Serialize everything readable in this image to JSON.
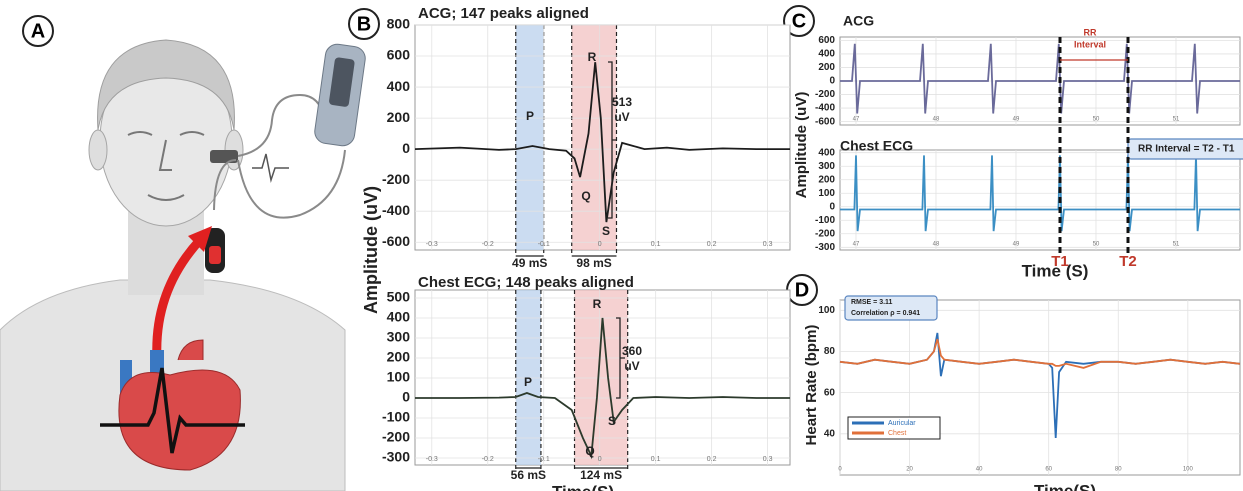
{
  "panel_labels": [
    "A",
    "B",
    "C",
    "D"
  ],
  "chart_data": [
    {
      "type": "line",
      "title": "ACG; 147 peaks aligned",
      "y_label": "Amplitude (uV)",
      "x": [
        -0.33,
        -0.25,
        -0.18,
        -0.15,
        -0.12,
        -0.09,
        -0.06,
        -0.045,
        -0.035,
        -0.02,
        -0.008,
        0.002,
        0.012,
        0.025,
        0.04,
        0.06,
        0.08,
        0.12,
        0.16,
        0.22,
        0.28,
        0.34
      ],
      "series": [
        {
          "color": "#1c1c1c",
          "values": [
            0,
            10,
            -5,
            0,
            20,
            0,
            -10,
            -60,
            -180,
            100,
            560,
            200,
            -470,
            -150,
            40,
            20,
            0,
            10,
            -5,
            5,
            0,
            0
          ]
        }
      ],
      "xlim": [
        -0.33,
        0.34
      ],
      "xticks": [
        -0.3,
        -0.2,
        -0.1,
        0,
        0.1,
        0.2,
        0.3
      ],
      "ylim": [
        -650,
        800
      ],
      "yticks": [
        800,
        600,
        400,
        200,
        0,
        -200,
        -400,
        -600
      ],
      "grid": true,
      "regions": [
        {
          "from": -0.15,
          "to": -0.1,
          "color": "#b9d0ec",
          "label": "49 mS"
        },
        {
          "from": -0.05,
          "to": 0.03,
          "color": "#f1c2c2",
          "label": "98 mS"
        }
      ],
      "annotations": [
        "P",
        "R",
        "513",
        "uV",
        "Q",
        "S"
      ]
    },
    {
      "type": "line",
      "title": "Chest ECG; 148 peaks aligned",
      "x_label": "Time(S)",
      "x": [
        -0.33,
        -0.25,
        -0.18,
        -0.15,
        -0.13,
        -0.11,
        -0.08,
        -0.05,
        -0.03,
        -0.015,
        -0.005,
        0.005,
        0.015,
        0.025,
        0.04,
        0.06,
        0.1,
        0.16,
        0.22,
        0.28,
        0.34
      ],
      "series": [
        {
          "color": "#2c3a2c",
          "values": [
            0,
            0,
            2,
            5,
            25,
            5,
            0,
            -60,
            -200,
            -290,
            0,
            400,
            100,
            -120,
            -60,
            0,
            5,
            0,
            5,
            0,
            0
          ]
        }
      ],
      "xlim": [
        -0.33,
        0.34
      ],
      "xticks": [
        -0.3,
        -0.2,
        -0.1,
        0,
        0.1,
        0.2,
        0.3
      ],
      "ylim": [
        -335,
        540
      ],
      "yticks": [
        500,
        400,
        300,
        200,
        100,
        0,
        -100,
        -200,
        -300
      ],
      "grid": true,
      "regions": [
        {
          "from": -0.15,
          "to": -0.105,
          "color": "#b9d0ec",
          "label": "56 mS"
        },
        {
          "from": -0.045,
          "to": 0.05,
          "color": "#f1c2c2",
          "label": "124 mS"
        }
      ],
      "annotations": [
        "P",
        "R",
        "360",
        "uV",
        "Q",
        "S"
      ]
    },
    {
      "type": "line",
      "title": "ACG",
      "y_label": "Amplitude (uV)",
      "x": [
        46.8,
        46.95,
        46.985,
        47.015,
        47.05,
        47.8,
        47.835,
        47.865,
        47.9,
        48.65,
        48.685,
        48.715,
        48.75,
        49.5,
        49.535,
        49.565,
        49.6,
        50.35,
        50.385,
        50.415,
        50.45,
        51.2,
        51.235,
        51.265,
        51.3,
        51.8
      ],
      "series": [
        {
          "color": "#6a6a9a",
          "values": [
            0,
            0,
            550,
            -480,
            0,
            0,
            550,
            -480,
            0,
            0,
            550,
            -480,
            0,
            0,
            550,
            -480,
            0,
            0,
            550,
            -480,
            0,
            0,
            550,
            -480,
            0,
            0
          ]
        }
      ],
      "xlim": [
        46.8,
        51.8
      ],
      "xticks": [
        47,
        48,
        49,
        50,
        51
      ],
      "ylim": [
        -650,
        650
      ],
      "yticks": [
        600,
        400,
        200,
        0,
        -200,
        -400,
        -600
      ],
      "grid": true,
      "annotations": [
        "RR",
        "Interval"
      ],
      "annotation_color": "#c0392b"
    },
    {
      "type": "line",
      "title": "Chest ECG",
      "x_label": "Time (S)",
      "x": [
        46.8,
        46.98,
        47.0,
        47.02,
        47.05,
        47.83,
        47.85,
        47.87,
        47.9,
        48.68,
        48.7,
        48.72,
        48.75,
        49.53,
        49.55,
        49.57,
        49.6,
        50.38,
        50.4,
        50.42,
        50.45,
        51.23,
        51.25,
        51.27,
        51.3,
        51.8
      ],
      "series": [
        {
          "color": "#3c8fc4",
          "values": [
            -20,
            -20,
            380,
            -180,
            -20,
            -20,
            380,
            -180,
            -20,
            -20,
            380,
            -180,
            -20,
            -20,
            380,
            -180,
            -20,
            -20,
            380,
            -180,
            -20,
            -20,
            380,
            -180,
            -20,
            -20
          ]
        }
      ],
      "xlim": [
        46.8,
        51.8
      ],
      "xticks": [
        47,
        48,
        49,
        50,
        51
      ],
      "ylim": [
        -320,
        420
      ],
      "yticks": [
        400,
        300,
        200,
        100,
        0,
        -100,
        -200,
        -300
      ],
      "grid": true,
      "markers": [
        {
          "value": 49.55,
          "label": "T1"
        },
        {
          "value": 50.4,
          "label": "T2"
        }
      ],
      "marker_color": "#c0392b",
      "annotations": [
        "RR Interval = T2 - T1"
      ]
    },
    {
      "type": "line",
      "y_label": "Heart Rate (bpm)",
      "x_label": "Time(S)",
      "x": [
        0,
        5,
        10,
        15,
        20,
        25,
        27,
        28,
        29,
        30,
        35,
        40,
        45,
        50,
        55,
        60,
        61,
        62,
        63,
        65,
        70,
        75,
        80,
        85,
        90,
        95,
        100,
        105,
        110,
        115
      ],
      "series": [
        {
          "name": "Auricular",
          "color": "#2c6fb7",
          "values": [
            75,
            74,
            76,
            75,
            74,
            76,
            80,
            89,
            68,
            76,
            75,
            74,
            75,
            76,
            75,
            74,
            72,
            38,
            70,
            75,
            74,
            75,
            75,
            74,
            75,
            76,
            75,
            74,
            75,
            74
          ]
        },
        {
          "name": "Chest",
          "color": "#e0703a",
          "values": [
            75,
            74,
            76,
            75,
            74,
            76,
            80,
            86,
            78,
            76,
            75,
            74,
            75,
            76,
            75,
            74,
            74,
            73,
            73,
            74,
            72,
            75,
            75,
            74,
            75,
            76,
            75,
            74,
            75,
            74
          ]
        }
      ],
      "xlim": [
        0,
        115
      ],
      "xticks": [
        0,
        20,
        40,
        60,
        80,
        100
      ],
      "ylim": [
        20,
        105
      ],
      "yticks": [
        40,
        60,
        80,
        100
      ],
      "grid": true,
      "annotations": [
        "RMSE = 3.11",
        "Correlation ρ = 0.941"
      ]
    }
  ]
}
